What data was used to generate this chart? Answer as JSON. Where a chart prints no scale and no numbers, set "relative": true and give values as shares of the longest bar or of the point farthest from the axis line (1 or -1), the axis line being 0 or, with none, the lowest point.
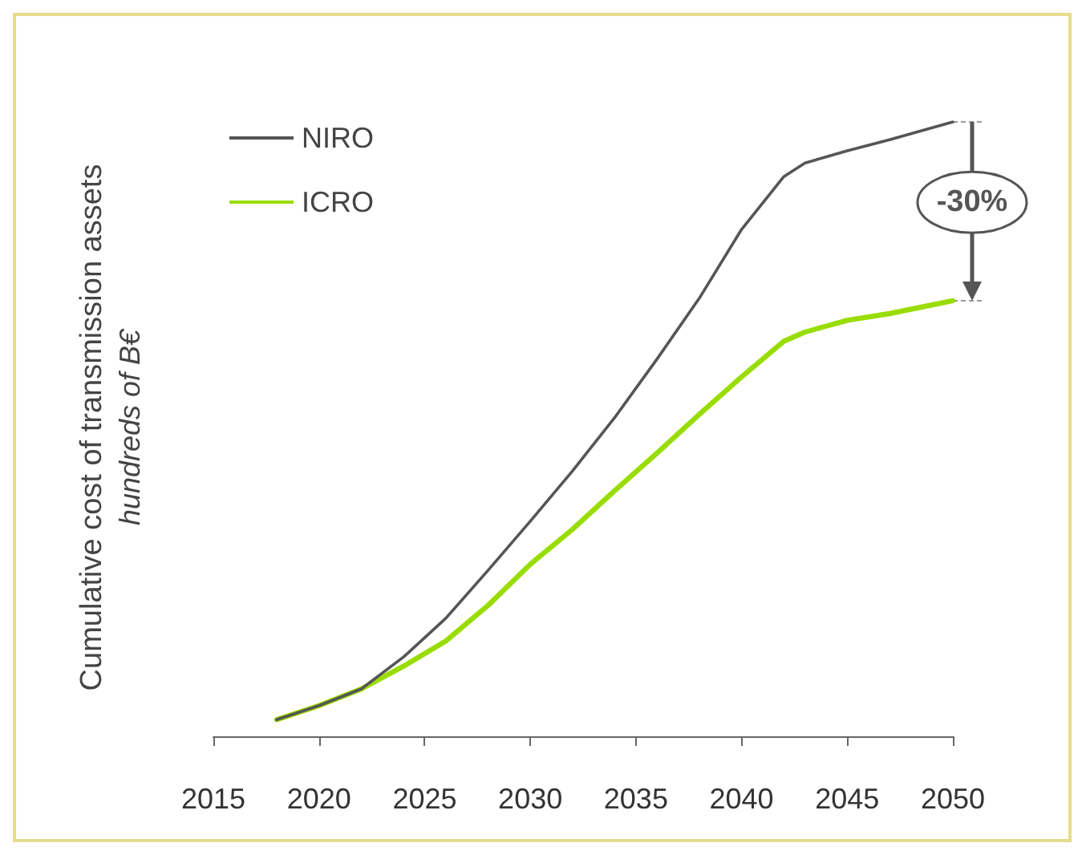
{
  "chart_data": {
    "type": "line",
    "relative": true,
    "ylabel": "Cumulative cost of transmission assets\nhundreds of B€",
    "x": [
      2018,
      2020,
      2022,
      2024,
      2026,
      2028,
      2030,
      2032,
      2034,
      2036,
      2038,
      2040,
      2042,
      2043,
      2045,
      2047,
      2050
    ],
    "series": [
      {
        "name": "NIRO",
        "color": "#555555",
        "values": [
          0.027,
          0.05,
          0.077,
          0.129,
          0.192,
          0.27,
          0.35,
          0.432,
          0.519,
          0.614,
          0.713,
          0.825,
          0.911,
          0.933,
          0.953,
          0.971,
          1.0
        ]
      },
      {
        "name": "ICRO",
        "color": "#99dd00",
        "values": [
          0.027,
          0.05,
          0.077,
          0.114,
          0.155,
          0.213,
          0.28,
          0.337,
          0.4,
          0.461,
          0.524,
          0.585,
          0.643,
          0.658,
          0.677,
          0.688,
          0.709
        ]
      }
    ],
    "xlim": [
      2015,
      2050
    ],
    "xticks": [
      2015,
      2020,
      2025,
      2030,
      2035,
      2040,
      2045,
      2050
    ],
    "annotations": [
      "-30%"
    ],
    "grid": false,
    "legend": "top left",
    "marker": "none",
    "line_style": "solid"
  }
}
